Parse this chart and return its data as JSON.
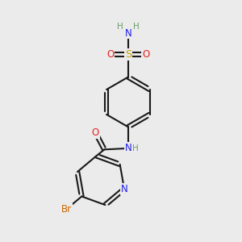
{
  "bg_color": "#ebebeb",
  "bond_color": "#1a1a1a",
  "bond_width": 1.5,
  "atom_colors": {
    "N": "#2020e8",
    "O": "#e82020",
    "S": "#c8a000",
    "Br": "#cc6600",
    "C": "#1a1a1a",
    "H": "#6a9a6a"
  },
  "font_size": 8.5
}
